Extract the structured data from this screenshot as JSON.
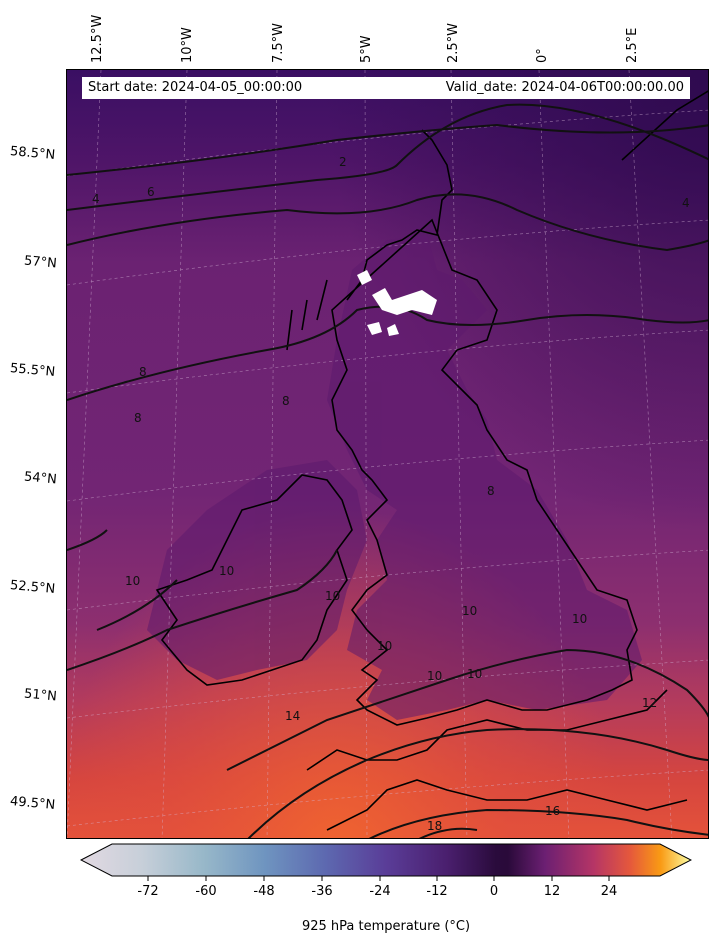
{
  "header": {
    "start": "Start date: 2024-04-05_00:00:00",
    "valid": "Valid_date: 2024-04-06T00:00:00.00"
  },
  "lon_labels": [
    "12.5°W",
    "10°W",
    "7.5°W",
    "5°W",
    "2.5°W",
    "0°",
    "2.5°E"
  ],
  "lat_labels": [
    "58.5°N",
    "57°N",
    "55.5°N",
    "54°N",
    "52.5°N",
    "51°N",
    "49.5°N"
  ],
  "contour_labels": [
    "2",
    "4",
    "4",
    "6",
    "8",
    "8",
    "8",
    "8",
    "10",
    "10",
    "10",
    "10",
    "10",
    "10",
    "10",
    "10",
    "12",
    "14",
    "16",
    "18"
  ],
  "colorbar": {
    "title": "925 hPa temperature ($^\\circ$C)",
    "title_display": "925 hPa temperature (°C)",
    "ticks": [
      "-72",
      "-60",
      "-48",
      "-36",
      "-24",
      "-12",
      "0",
      "12",
      "24"
    ],
    "colormap": "twilight-cold + inferno-warm"
  },
  "colors": {
    "cold_top": "#3a0f63",
    "mid": "#6b2272",
    "warm": "#d5433f",
    "hot": "#f2622d"
  }
}
